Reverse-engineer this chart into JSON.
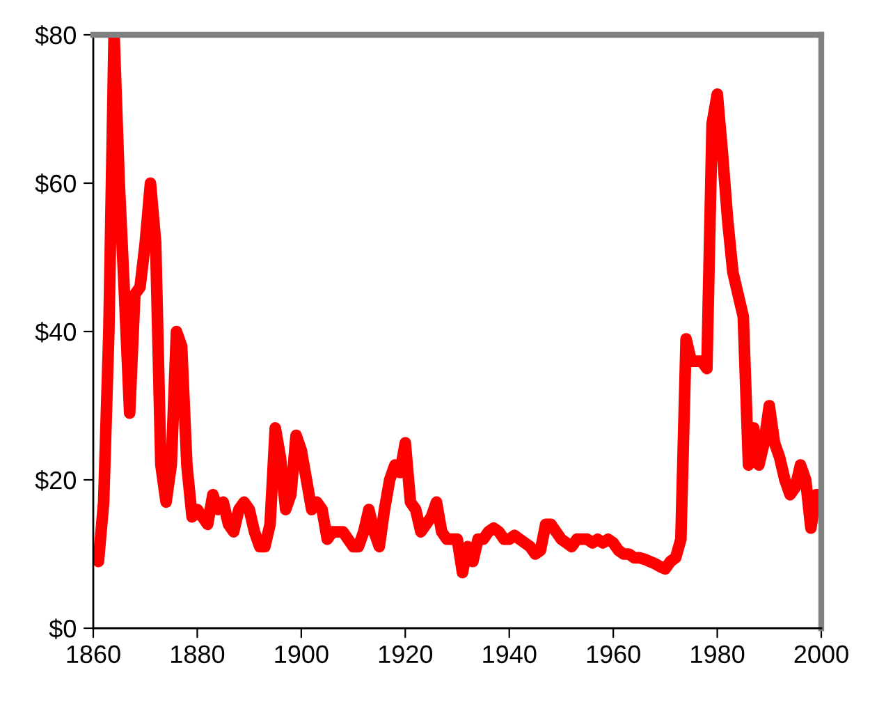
{
  "chart_data": {
    "type": "line",
    "x": [
      1861,
      1862,
      1863,
      1864,
      1865,
      1866,
      1867,
      1868,
      1869,
      1870,
      1871,
      1872,
      1873,
      1874,
      1875,
      1876,
      1877,
      1878,
      1879,
      1880,
      1881,
      1882,
      1883,
      1884,
      1885,
      1886,
      1887,
      1888,
      1889,
      1890,
      1891,
      1892,
      1893,
      1894,
      1895,
      1896,
      1897,
      1898,
      1899,
      1900,
      1901,
      1902,
      1903,
      1904,
      1905,
      1906,
      1907,
      1908,
      1909,
      1910,
      1911,
      1912,
      1913,
      1914,
      1915,
      1916,
      1917,
      1918,
      1919,
      1920,
      1921,
      1922,
      1923,
      1924,
      1925,
      1926,
      1927,
      1928,
      1929,
      1930,
      1931,
      1932,
      1933,
      1934,
      1935,
      1936,
      1937,
      1938,
      1939,
      1940,
      1941,
      1942,
      1943,
      1944,
      1945,
      1946,
      1947,
      1948,
      1949,
      1950,
      1951,
      1952,
      1953,
      1954,
      1955,
      1956,
      1957,
      1958,
      1959,
      1960,
      1961,
      1962,
      1963,
      1964,
      1965,
      1966,
      1967,
      1968,
      1969,
      1970,
      1971,
      1972,
      1973,
      1974,
      1975,
      1976,
      1977,
      1978,
      1979,
      1980,
      1981,
      1982,
      1983,
      1984,
      1985,
      1986,
      1987,
      1988,
      1989,
      1990,
      1991,
      1992,
      1993,
      1994,
      1995,
      1996,
      1997,
      1998,
      1999,
      2000
    ],
    "series": [
      {
        "color": "#ff0000",
        "values": [
          9,
          17,
          40,
          80,
          60,
          45,
          29,
          45,
          46,
          52,
          60,
          52,
          22,
          17,
          22,
          40,
          38,
          22,
          15,
          16,
          15,
          14,
          18,
          16,
          17,
          14,
          13,
          16,
          17,
          16,
          13,
          11,
          11,
          14,
          27,
          23,
          16,
          18,
          26,
          24,
          20,
          16,
          17,
          16,
          12,
          13,
          13,
          13,
          12,
          11,
          11,
          13,
          16,
          13,
          11,
          16,
          20,
          22,
          21,
          25,
          17,
          16,
          13,
          14,
          15,
          17,
          13,
          12,
          12,
          12,
          7.5,
          11,
          9,
          12,
          12,
          13,
          13.5,
          13,
          12,
          12,
          12.5,
          12,
          11.5,
          11,
          10,
          10.5,
          14,
          14,
          13,
          12,
          11.5,
          11,
          12,
          12,
          12,
          11.5,
          12,
          11.5,
          12,
          11.5,
          10.5,
          10,
          10,
          9.5,
          9.5,
          9.3,
          9,
          8.7,
          8.3,
          8,
          9,
          9.5,
          12,
          39,
          36,
          36,
          36,
          35,
          68,
          72,
          64,
          55,
          48,
          45,
          42,
          22,
          27,
          22,
          25,
          30,
          25,
          23,
          20,
          18,
          19,
          22,
          20,
          13.5,
          18,
          18
        ]
      }
    ],
    "xlim": [
      1860,
      2000
    ],
    "xticks": [
      1860,
      1880,
      1900,
      1920,
      1940,
      1960,
      1980,
      2000
    ],
    "ylim": [
      0,
      80
    ],
    "yticks": [
      {
        "value": 0,
        "label": "$0"
      },
      {
        "value": 20,
        "label": "$20"
      },
      {
        "value": 40,
        "label": "$40"
      },
      {
        "value": 60,
        "label": "$60"
      },
      {
        "value": 80,
        "label": "$80"
      }
    ],
    "grid": false,
    "legend": false,
    "marker": "none",
    "line_style": "solid"
  }
}
